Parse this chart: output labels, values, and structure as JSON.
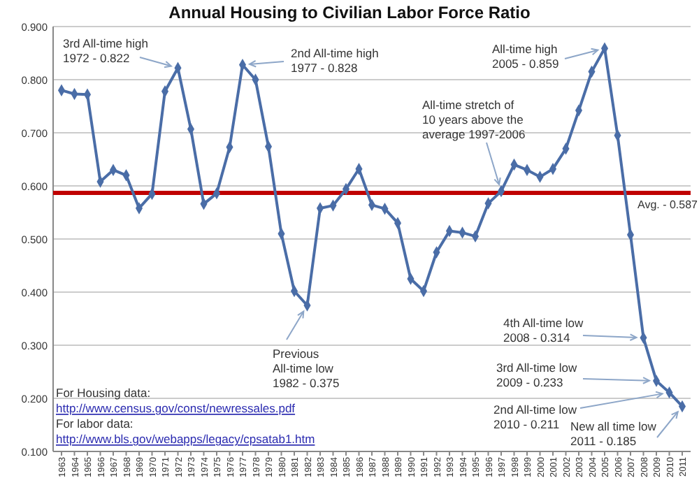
{
  "chart_data": {
    "type": "line",
    "title": "Annual Housing to Civilian Labor Force Ratio",
    "categories": [
      "1963",
      "1964",
      "1965",
      "1966",
      "1967",
      "1968",
      "1969",
      "1970",
      "1971",
      "1972",
      "1973",
      "1974",
      "1975",
      "1976",
      "1977",
      "1978",
      "1979",
      "1980",
      "1981",
      "1982",
      "1983",
      "1984",
      "1985",
      "1986",
      "1987",
      "1988",
      "1989",
      "1990",
      "1991",
      "1992",
      "1993",
      "1994",
      "1995",
      "1996",
      "1997",
      "1998",
      "1999",
      "2000",
      "2001",
      "2002",
      "2003",
      "2004",
      "2005",
      "2006",
      "2007",
      "2008",
      "2009",
      "2010",
      "2011"
    ],
    "series": [
      {
        "color": "#4a6da7",
        "values": [
          0.78,
          0.773,
          0.772,
          0.608,
          0.63,
          0.62,
          0.558,
          0.585,
          0.778,
          0.822,
          0.707,
          0.566,
          0.586,
          0.673,
          0.828,
          0.8,
          0.674,
          0.51,
          0.402,
          0.375,
          0.558,
          0.563,
          0.594,
          0.632,
          0.564,
          0.557,
          0.53,
          0.425,
          0.402,
          0.475,
          0.515,
          0.512,
          0.505,
          0.567,
          0.59,
          0.64,
          0.63,
          0.617,
          0.632,
          0.67,
          0.742,
          0.815,
          0.859,
          0.695,
          0.508,
          0.314,
          0.233,
          0.211,
          0.185
        ]
      }
    ],
    "ylim": [
      0.1,
      0.9
    ],
    "yticks": [
      {
        "value": 0.1,
        "label": "0.100"
      },
      {
        "value": 0.2,
        "label": "0.200"
      },
      {
        "value": 0.3,
        "label": "0.300"
      },
      {
        "value": 0.4,
        "label": "0.400"
      },
      {
        "value": 0.5,
        "label": "0.500"
      },
      {
        "value": 0.6,
        "label": "0.600"
      },
      {
        "value": 0.7,
        "label": "0.700"
      },
      {
        "value": 0.8,
        "label": "0.800"
      },
      {
        "value": 0.9,
        "label": "0.900"
      }
    ],
    "grid": "y",
    "marker": "diamond",
    "line_style": "solid",
    "ref_lines": [
      {
        "axis": "y",
        "value": 0.587,
        "label": "Avg. - 0.587",
        "color": "#c00000"
      }
    ],
    "annotations": [
      {
        "text": "3rd All-time high\n1972 - 0.822",
        "x": "1972",
        "y": 0.822
      },
      {
        "text": "2nd All-time high\n1977 - 0.828",
        "x": "1977",
        "y": 0.828
      },
      {
        "text": "All-time high\n2005 -  0.859",
        "x": "2005",
        "y": 0.859
      },
      {
        "text": "All-time stretch of\n10 years above the\naverage 1997-2006",
        "x": "1997",
        "y": 0.59
      },
      {
        "text": "Previous\nAll-time low\n1982 -  0.375",
        "x": "1982",
        "y": 0.375
      },
      {
        "text": "4th All-time low\n2008 - 0.314",
        "x": "2008",
        "y": 0.314
      },
      {
        "text": "3rd All-time low\n2009 - 0.233",
        "x": "2009",
        "y": 0.233
      },
      {
        "text": "2nd All-time low\n2010 - 0.211",
        "x": "2010",
        "y": 0.211
      },
      {
        "text": "New all time low\n2011 - 0.185",
        "x": "2011",
        "y": 0.185
      },
      "For Housing data:",
      "http://www.census.gov/const/newressales.pdf",
      "For labor data:",
      "http://www.bls.gov/webapps/legacy/cpsatab1.htm"
    ]
  }
}
